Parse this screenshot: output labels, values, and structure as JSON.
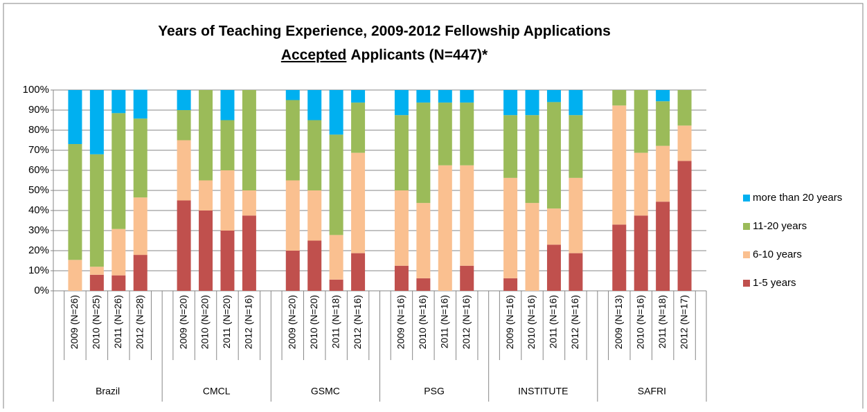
{
  "chart_data": {
    "type": "stacked_bar",
    "title": "Years of Teaching Experience, 2009-2012 Fellowship Applications",
    "subtitle": {
      "underlined": "Accepted",
      "rest": "Applicants (N=447)*"
    },
    "groups": [
      "Brazil",
      "CMCL",
      "GSMC",
      "PSG",
      "INSTITUTE",
      "SAFRI"
    ],
    "categories": [
      "2009 (N=26)",
      "2010 (N=25)",
      "2011 (N=26)",
      "2012 (N=28)",
      "2009 (N=20)",
      "2010 (N=20)",
      "2011 (N=20)",
      "2012 (N=16)",
      "2009 (N=20)",
      "2010 (N=20)",
      "2011 (N=18)",
      "2012 (N=16)",
      "2009 (N=16)",
      "2010 (N=16)",
      "2011 (N=16)",
      "2012 (N=16)",
      "2009 (N=16)",
      "2010 (N=16)",
      "2011 (N=16)",
      "2012 (N=16)",
      "2009 (N=13)",
      "2010 (N=16)",
      "2011 (N=18)",
      "2012 (N=17)"
    ],
    "series": [
      {
        "name": "1-5 years",
        "color": "#c0504d",
        "values": [
          0,
          8,
          7.7,
          17.9,
          45,
          40,
          30,
          37.5,
          20,
          25,
          5.6,
          18.75,
          12.5,
          6.25,
          0,
          12.5,
          6.25,
          0,
          23,
          18.75,
          33,
          37.5,
          44.4,
          64.7
        ]
      },
      {
        "name": "6-10 years",
        "color": "#fac090",
        "values": [
          15.4,
          4,
          23.1,
          28.6,
          30,
          15,
          30,
          12.5,
          35,
          25,
          22.2,
          50,
          37.5,
          37.5,
          62.5,
          50,
          50,
          43.75,
          18,
          37.5,
          59.3,
          31.25,
          27.8,
          17.6
        ]
      },
      {
        "name": "11-20 years",
        "color": "#9bbb59",
        "values": [
          57.7,
          56,
          57.7,
          39.3,
          15,
          45,
          25,
          50,
          40,
          35,
          50,
          25,
          37.5,
          50,
          31.25,
          31.25,
          31.25,
          43.75,
          53,
          31.25,
          7.7,
          31.25,
          22.2,
          17.7
        ]
      },
      {
        "name": "more than 20 years",
        "color": "#00b0f0",
        "values": [
          26.9,
          32,
          11.5,
          14.3,
          10,
          0,
          15,
          0,
          5,
          15,
          22.2,
          6.25,
          12.5,
          6.25,
          6.25,
          6.25,
          12.5,
          12.5,
          6,
          12.5,
          0,
          0,
          5.6,
          0
        ]
      }
    ],
    "ylim": [
      0,
      100
    ],
    "yticks": [
      {
        "value": 0,
        "label": "0%"
      },
      {
        "value": 10,
        "label": "10%"
      },
      {
        "value": 20,
        "label": "20%"
      },
      {
        "value": 30,
        "label": "30%"
      },
      {
        "value": 40,
        "label": "40%"
      },
      {
        "value": 50,
        "label": "50%"
      },
      {
        "value": 60,
        "label": "60%"
      },
      {
        "value": 70,
        "label": "70%"
      },
      {
        "value": 80,
        "label": "80%"
      },
      {
        "value": 90,
        "label": "90%"
      },
      {
        "value": 100,
        "label": "100%"
      }
    ],
    "grid": true,
    "legend": "right"
  }
}
